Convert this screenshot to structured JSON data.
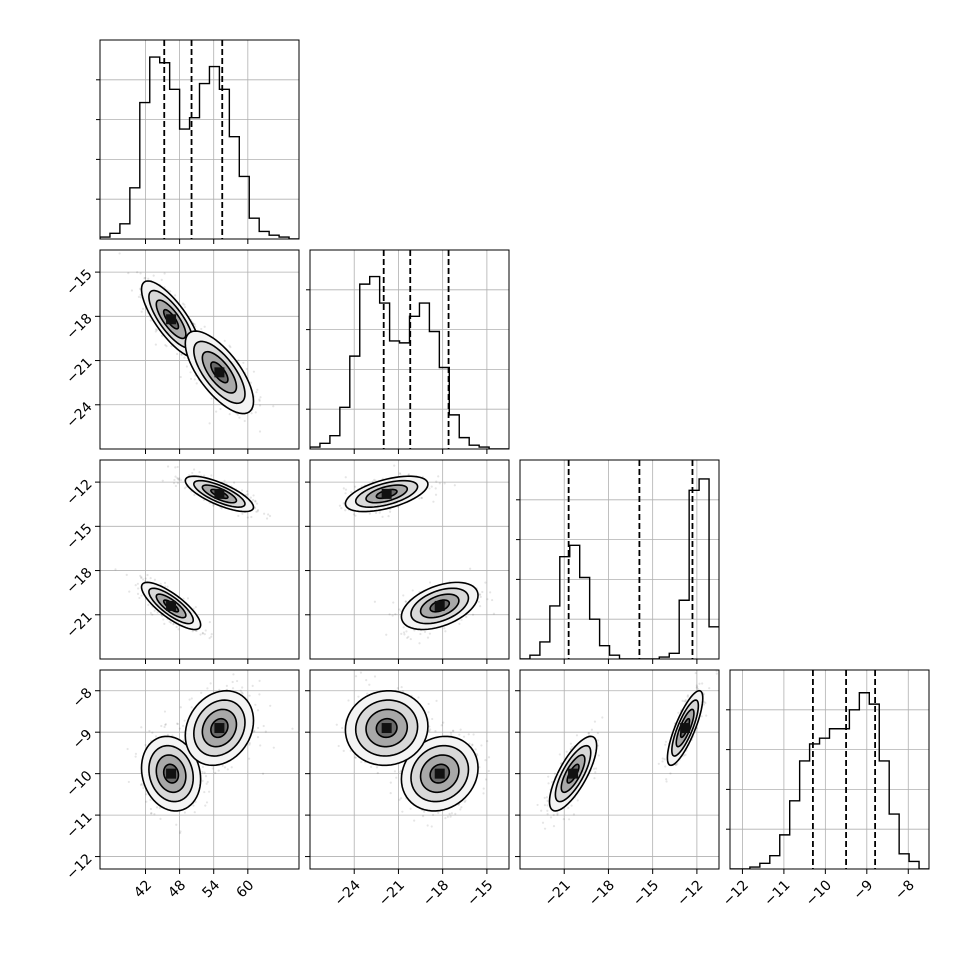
{
  "chart_data": {
    "type": "corner",
    "parameters": [
      {
        "range": [
          34,
          69
        ],
        "ticks": [
          42,
          48,
          54,
          60
        ],
        "tick_labels": [
          "42",
          "48",
          "54",
          "60"
        ]
      },
      {
        "range": [
          -27,
          -13.5
        ],
        "ticks": [
          -24,
          -21,
          -18,
          -15
        ],
        "tick_labels": [
          "−24",
          "−21",
          "−18",
          "−15"
        ]
      },
      {
        "range": [
          -24,
          -10.5
        ],
        "ticks": [
          -21,
          -18,
          -15,
          -12
        ],
        "tick_labels": [
          "−21",
          "−18",
          "−15",
          "−12"
        ]
      },
      {
        "range": [
          -12.3,
          -7.5
        ],
        "ticks": [
          -12,
          -11,
          -10,
          -9,
          -8
        ],
        "tick_labels": [
          "−12",
          "−11",
          "−10",
          "−9",
          "−8"
        ]
      }
    ],
    "histograms": [
      {
        "edges": [
          34,
          35.75,
          37.5,
          39.25,
          41,
          42.75,
          44.5,
          46.25,
          48,
          49.75,
          51.5,
          53.25,
          55,
          56.75,
          58.5,
          60.25,
          62,
          63.75,
          65.5,
          67.25,
          69
        ],
        "counts": [
          0.01,
          0.03,
          0.08,
          0.27,
          0.72,
          0.96,
          0.93,
          0.79,
          0.58,
          0.64,
          0.82,
          0.91,
          0.79,
          0.54,
          0.33,
          0.11,
          0.04,
          0.02,
          0.01,
          0
        ],
        "quantiles": [
          45.3,
          50.1,
          55.5
        ]
      },
      {
        "edges": [
          -27,
          -26.325,
          -25.65,
          -24.975,
          -24.3,
          -23.625,
          -22.95,
          -22.275,
          -21.6,
          -20.925,
          -20.25,
          -19.575,
          -18.9,
          -18.225,
          -17.55,
          -16.875,
          -16.2,
          -15.525,
          -14.85,
          -14.175,
          -13.5
        ],
        "counts": [
          0.01,
          0.03,
          0.07,
          0.22,
          0.49,
          0.87,
          0.91,
          0.77,
          0.57,
          0.56,
          0.7,
          0.77,
          0.62,
          0.43,
          0.18,
          0.06,
          0.02,
          0.01,
          0,
          0
        ],
        "quantiles": [
          -22.0,
          -20.2,
          -17.6
        ]
      },
      {
        "edges": [
          -24,
          -23.325,
          -22.65,
          -21.975,
          -21.3,
          -20.625,
          -19.95,
          -19.275,
          -18.6,
          -17.925,
          -17.25,
          -16.575,
          -15.9,
          -15.225,
          -14.55,
          -13.875,
          -13.2,
          -12.525,
          -11.85,
          -11.175,
          -10.5
        ],
        "counts": [
          0,
          0.02,
          0.09,
          0.28,
          0.54,
          0.6,
          0.43,
          0.21,
          0.07,
          0.02,
          0,
          0,
          0,
          0,
          0.01,
          0.03,
          0.31,
          0.89,
          0.95,
          0.17
        ],
        "quantiles": [
          -20.7,
          -15.9,
          -12.3
        ]
      },
      {
        "edges": [
          -12.3,
          -12.06,
          -11.82,
          -11.58,
          -11.34,
          -11.1,
          -10.86,
          -10.62,
          -10.38,
          -10.14,
          -9.9,
          -9.66,
          -9.42,
          -9.18,
          -8.94,
          -8.7,
          -8.46,
          -8.22,
          -7.98,
          -7.74,
          -7.5
        ],
        "counts": [
          0,
          0,
          0.01,
          0.03,
          0.07,
          0.18,
          0.36,
          0.57,
          0.66,
          0.69,
          0.74,
          0.74,
          0.84,
          0.93,
          0.87,
          0.57,
          0.29,
          0.08,
          0.04,
          0
        ],
        "quantiles": [
          -10.3,
          -9.5,
          -8.8
        ]
      }
    ],
    "modes": [
      {
        "mean": [
          46.5,
          -18.2,
          -20.4,
          -10.0
        ],
        "sd": [
          2.6,
          1.3,
          0.8,
          0.45
        ],
        "weight": 0.5
      },
      {
        "mean": [
          55.0,
          -21.8,
          -12.8,
          -8.9
        ],
        "sd": [
          3.0,
          1.4,
          0.6,
          0.45
        ],
        "weight": 0.5
      }
    ],
    "correlations": [
      [
        [
          -0.78,
          -0.7
        ],
        [
          -0.8,
          -0.75
        ],
        [
          -0.15,
          0.2
        ]
      ],
      [
        [
          0.45,
          0.55
        ],
        [
          0.15,
          0.05
        ]
      ],
      [
        [
          0.75,
          0.8
        ]
      ]
    ],
    "contour_levels": [
      0.5,
      1.0,
      1.5,
      2.0
    ],
    "grid": true
  }
}
